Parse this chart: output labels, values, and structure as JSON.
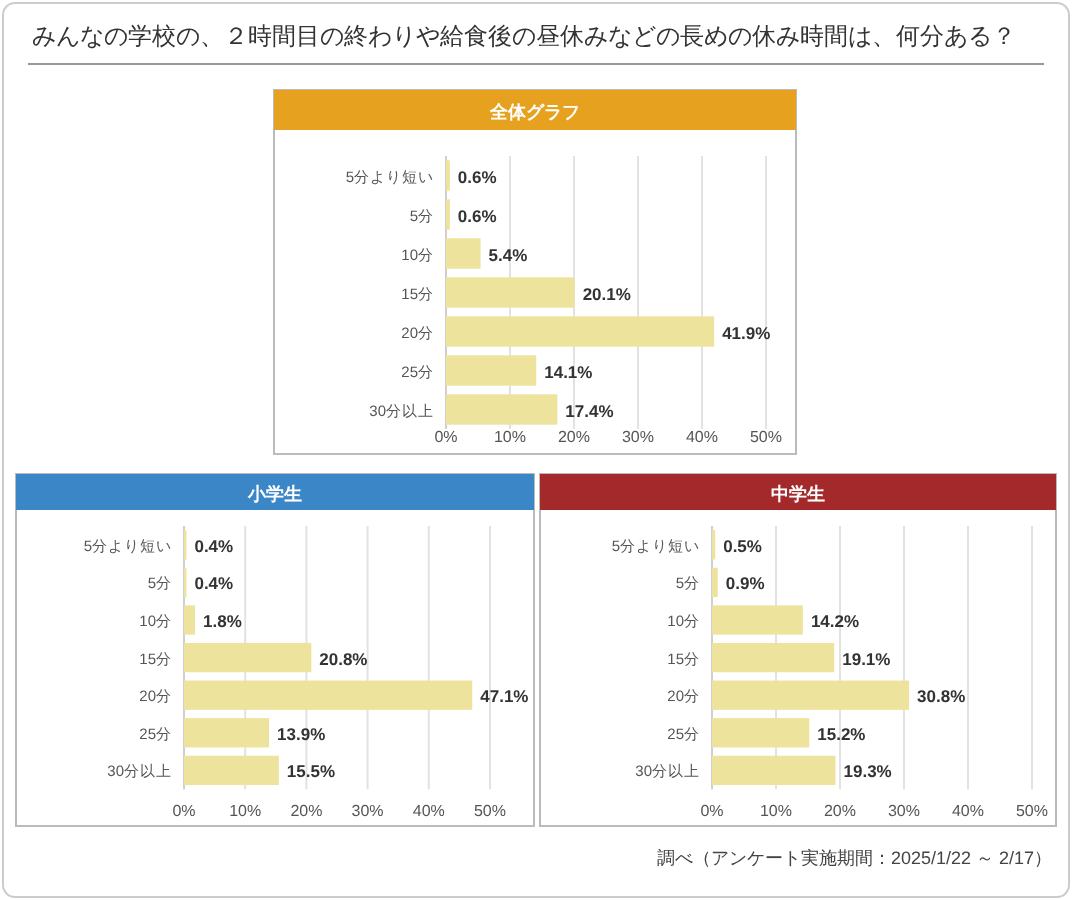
{
  "chart_data": [
    {
      "type": "bar",
      "orientation": "horizontal",
      "title": "みんなの学校の、２時間目の終わりや給食後の昼休みなどの長めの休み時間は、何分ある？",
      "subtitle": "全体グラフ",
      "categories": [
        "5分より短い",
        "5分",
        "10分",
        "15分",
        "20分",
        "25分",
        "30分以上"
      ],
      "values": [
        0.6,
        0.6,
        5.4,
        20.1,
        41.9,
        14.1,
        17.4
      ],
      "value_labels": [
        "0.6%",
        "0.6%",
        "5.4%",
        "20.1%",
        "41.9%",
        "14.1%",
        "17.4%"
      ],
      "color": "#eee39c",
      "xlim": [
        0,
        50
      ],
      "xticks": [
        {
          "value": 0,
          "label": "0%"
        },
        {
          "value": 10,
          "label": "10%"
        },
        {
          "value": 20,
          "label": "20%"
        },
        {
          "value": 30,
          "label": "30%"
        },
        {
          "value": 40,
          "label": "40%"
        },
        {
          "value": 50,
          "label": "50%"
        }
      ],
      "grid": "x"
    },
    {
      "type": "bar",
      "orientation": "horizontal",
      "title": "小学生",
      "categories": [
        "5分より短い",
        "5分",
        "10分",
        "15分",
        "20分",
        "25分",
        "30分以上"
      ],
      "values": [
        0.4,
        0.4,
        1.8,
        20.8,
        47.1,
        13.9,
        15.5
      ],
      "value_labels": [
        "0.4%",
        "0.4%",
        "1.8%",
        "20.8%",
        "47.1%",
        "13.9%",
        "15.5%"
      ],
      "color": "#eee39c",
      "xlim": [
        0,
        50
      ],
      "xticks": [
        {
          "value": 0,
          "label": "0%"
        },
        {
          "value": 10,
          "label": "10%"
        },
        {
          "value": 20,
          "label": "20%"
        },
        {
          "value": 30,
          "label": "30%"
        },
        {
          "value": 40,
          "label": "40%"
        },
        {
          "value": 50,
          "label": "50%"
        }
      ],
      "grid": "x"
    },
    {
      "type": "bar",
      "orientation": "horizontal",
      "title": "中学生",
      "categories": [
        "5分より短い",
        "5分",
        "10分",
        "15分",
        "20分",
        "25分",
        "30分以上"
      ],
      "values": [
        0.5,
        0.9,
        14.2,
        19.1,
        30.8,
        15.2,
        19.3
      ],
      "value_labels": [
        "0.5%",
        "0.9%",
        "14.2%",
        "19.1%",
        "30.8%",
        "15.2%",
        "19.3%"
      ],
      "color": "#eee39c",
      "xlim": [
        0,
        50
      ],
      "xticks": [
        {
          "value": 0,
          "label": "0%"
        },
        {
          "value": 10,
          "label": "10%"
        },
        {
          "value": 20,
          "label": "20%"
        },
        {
          "value": 30,
          "label": "30%"
        },
        {
          "value": 40,
          "label": "40%"
        },
        {
          "value": 50,
          "label": "50%"
        }
      ],
      "grid": "x",
      "annotations": [
        "調べ（アンケート実施期間：2025/1/22 ～ 2/17）"
      ]
    }
  ]
}
